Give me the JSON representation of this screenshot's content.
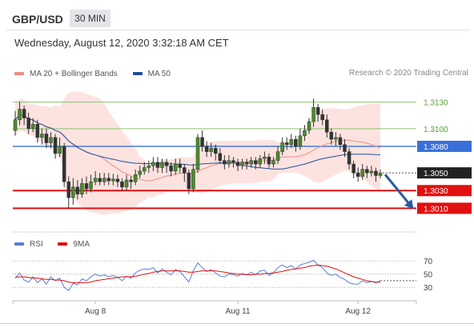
{
  "header": {
    "pair": "GBP/USD",
    "timeframe": "30 MIN",
    "timestamp": "Wednesday, August 12, 2020 3:32:18 AM CET"
  },
  "legend": {
    "items": [
      {
        "label": "MA 20 + Bollinger Bands",
        "color": "#f08a80"
      },
      {
        "label": "MA 50",
        "color": "#1f4e9c"
      }
    ],
    "credit": "Research © 2020 Trading Central"
  },
  "rsi_legend": {
    "items": [
      {
        "label": "RSI",
        "color": "#5b7fd6"
      },
      {
        "label": "9MA",
        "color": "#e01010"
      }
    ]
  },
  "chart_data": [
    {
      "type": "candlestick",
      "title": "GBP/USD 30 MIN",
      "ylim": [
        1.2985,
        1.3155
      ],
      "x_ticks": [
        {
          "label": "Aug 8",
          "index": 18
        },
        {
          "label": "Aug 11",
          "index": 50
        },
        {
          "label": "Aug 12",
          "index": 77
        }
      ],
      "current_price": {
        "value": 1.305,
        "label": "1.3050",
        "color": "#222222"
      },
      "levels": [
        {
          "value": 1.313,
          "label": "1.3130",
          "kind": "resistance",
          "color": "#8dc26f"
        },
        {
          "value": 1.31,
          "label": "1.3100",
          "kind": "resistance",
          "color": "#8dc26f"
        },
        {
          "value": 1.308,
          "label": "1.3080",
          "kind": "pivot",
          "color": "#3a6fd8"
        },
        {
          "value": 1.303,
          "label": "1.3030",
          "kind": "support",
          "color": "#e01010"
        },
        {
          "value": 1.301,
          "label": "1.3010",
          "kind": "support",
          "color": "#e01010"
        }
      ],
      "projection": {
        "from": 1.305,
        "to": 1.301
      },
      "candles": [
        [
          1.3098,
          1.311,
          1.312,
          1.3092
        ],
        [
          1.311,
          1.3122,
          1.313,
          1.3104
        ],
        [
          1.3122,
          1.3112,
          1.3126,
          1.3104
        ],
        [
          1.3112,
          1.31,
          1.3118,
          1.3094
        ],
        [
          1.31,
          1.3105,
          1.3112,
          1.3096
        ],
        [
          1.3105,
          1.309,
          1.311,
          1.3084
        ],
        [
          1.309,
          1.3094,
          1.31,
          1.3082
        ],
        [
          1.3094,
          1.3084,
          1.31,
          1.3078
        ],
        [
          1.3084,
          1.309,
          1.3096,
          1.3078
        ],
        [
          1.309,
          1.3072,
          1.3094,
          1.3066
        ],
        [
          1.3072,
          1.308,
          1.309,
          1.3068
        ],
        [
          1.308,
          1.304,
          1.3084,
          1.3034
        ],
        [
          1.304,
          1.3022,
          1.3046,
          1.301
        ],
        [
          1.3022,
          1.3034,
          1.3044,
          1.3014
        ],
        [
          1.3034,
          1.3026,
          1.3042,
          1.302
        ],
        [
          1.3026,
          1.3038,
          1.3044,
          1.3022
        ],
        [
          1.3038,
          1.3032,
          1.3046,
          1.3026
        ],
        [
          1.3032,
          1.304,
          1.3048,
          1.3028
        ],
        [
          1.304,
          1.3044,
          1.3052,
          1.3036
        ],
        [
          1.3044,
          1.304,
          1.305,
          1.3036
        ],
        [
          1.304,
          1.3044,
          1.305,
          1.3036
        ],
        [
          1.3044,
          1.3041,
          1.305,
          1.3036
        ],
        [
          1.3041,
          1.3043,
          1.3049,
          1.3036
        ],
        [
          1.3043,
          1.304,
          1.3048,
          1.3034
        ],
        [
          1.304,
          1.3034,
          1.3044,
          1.303
        ],
        [
          1.3034,
          1.3042,
          1.3048,
          1.303
        ],
        [
          1.3042,
          1.304,
          1.3046,
          1.3032
        ],
        [
          1.304,
          1.3048,
          1.3054,
          1.3036
        ],
        [
          1.3048,
          1.3052,
          1.3058,
          1.3044
        ],
        [
          1.3052,
          1.3056,
          1.3062,
          1.3048
        ],
        [
          1.3056,
          1.3058,
          1.3064,
          1.305
        ],
        [
          1.3058,
          1.3062,
          1.3068,
          1.3052
        ],
        [
          1.3062,
          1.3056,
          1.3068,
          1.305
        ],
        [
          1.3056,
          1.3062,
          1.3066,
          1.305
        ],
        [
          1.3062,
          1.3058,
          1.3066,
          1.305
        ],
        [
          1.3058,
          1.3052,
          1.3062,
          1.3046
        ],
        [
          1.3052,
          1.306,
          1.3066,
          1.3048
        ],
        [
          1.306,
          1.3056,
          1.3066,
          1.305
        ],
        [
          1.3056,
          1.305,
          1.306,
          1.304
        ],
        [
          1.305,
          1.3032,
          1.3054,
          1.3026
        ],
        [
          1.3032,
          1.3054,
          1.306,
          1.3028
        ],
        [
          1.3054,
          1.309,
          1.3094,
          1.305
        ],
        [
          1.309,
          1.308,
          1.3098,
          1.3074
        ],
        [
          1.308,
          1.3074,
          1.3086,
          1.3068
        ],
        [
          1.3074,
          1.3078,
          1.3084,
          1.3068
        ],
        [
          1.3078,
          1.3072,
          1.3082,
          1.3064
        ],
        [
          1.3072,
          1.3064,
          1.3078,
          1.306
        ],
        [
          1.3064,
          1.306,
          1.307,
          1.3054
        ],
        [
          1.306,
          1.3064,
          1.307,
          1.3056
        ],
        [
          1.3064,
          1.3062,
          1.3068,
          1.3056
        ],
        [
          1.3062,
          1.3058,
          1.3066,
          1.3052
        ],
        [
          1.3058,
          1.3062,
          1.3066,
          1.3054
        ],
        [
          1.3062,
          1.306,
          1.3066,
          1.3054
        ],
        [
          1.306,
          1.3064,
          1.3068,
          1.3056
        ],
        [
          1.3064,
          1.306,
          1.3068,
          1.3054
        ],
        [
          1.306,
          1.3066,
          1.307,
          1.3056
        ],
        [
          1.3066,
          1.3068,
          1.3074,
          1.306
        ],
        [
          1.3068,
          1.306,
          1.3072,
          1.3056
        ],
        [
          1.306,
          1.3064,
          1.3068,
          1.3056
        ],
        [
          1.3064,
          1.3074,
          1.308,
          1.306
        ],
        [
          1.3074,
          1.3084,
          1.309,
          1.307
        ],
        [
          1.3084,
          1.3082,
          1.309,
          1.3076
        ],
        [
          1.3082,
          1.3088,
          1.3094,
          1.3078
        ],
        [
          1.3088,
          1.308,
          1.3092,
          1.3074
        ],
        [
          1.308,
          1.3092,
          1.31,
          1.3076
        ],
        [
          1.3092,
          1.3098,
          1.3104,
          1.3086
        ],
        [
          1.3098,
          1.3108,
          1.3112,
          1.3094
        ],
        [
          1.3108,
          1.3124,
          1.3134,
          1.3102
        ],
        [
          1.3124,
          1.3116,
          1.3128,
          1.3108
        ],
        [
          1.3116,
          1.311,
          1.3122,
          1.3104
        ],
        [
          1.311,
          1.3096,
          1.3116,
          1.309
        ],
        [
          1.3096,
          1.3088,
          1.31,
          1.3082
        ],
        [
          1.3088,
          1.309,
          1.3096,
          1.308
        ],
        [
          1.309,
          1.3082,
          1.3094,
          1.3076
        ],
        [
          1.3082,
          1.3074,
          1.3088,
          1.3068
        ],
        [
          1.3074,
          1.306,
          1.3078,
          1.3054
        ],
        [
          1.306,
          1.305,
          1.3064,
          1.3044
        ],
        [
          1.305,
          1.3046,
          1.3056,
          1.304
        ],
        [
          1.3046,
          1.3054,
          1.306,
          1.3042
        ],
        [
          1.3054,
          1.305,
          1.3058,
          1.3044
        ],
        [
          1.305,
          1.3052,
          1.3058,
          1.3046
        ],
        [
          1.3052,
          1.3047,
          1.3056,
          1.304
        ],
        [
          1.3047,
          1.305,
          1.3054,
          1.3044
        ]
      ]
    },
    {
      "type": "line",
      "title": "RSI",
      "ylim": [
        20,
        80
      ],
      "y_ticks": [
        70,
        50,
        30
      ],
      "series": [
        {
          "name": "RSI",
          "color": "#5b7fd6",
          "values": [
            44,
            52,
            41,
            38,
            46,
            37,
            43,
            35,
            46,
            40,
            44,
            30,
            25,
            36,
            34,
            43,
            40,
            46,
            50,
            47,
            49,
            46,
            48,
            45,
            40,
            47,
            44,
            52,
            56,
            58,
            57,
            60,
            52,
            58,
            53,
            49,
            57,
            54,
            46,
            38,
            55,
            67,
            60,
            54,
            57,
            52,
            47,
            46,
            50,
            49,
            47,
            51,
            49,
            53,
            49,
            55,
            56,
            48,
            52,
            60,
            64,
            60,
            63,
            58,
            64,
            66,
            68,
            71,
            64,
            60,
            52,
            48,
            50,
            45,
            42,
            37,
            35,
            35,
            40,
            37,
            39,
            37,
            40
          ]
        },
        {
          "name": "9MA",
          "color": "#e01010",
          "values": [
            45,
            46,
            46,
            45,
            44,
            44,
            43,
            42,
            42,
            41,
            41,
            40,
            38,
            37,
            37,
            37,
            37,
            38,
            40,
            41,
            42,
            43,
            44,
            45,
            46,
            46,
            46,
            47,
            48,
            50,
            51,
            53,
            54,
            55,
            55,
            55,
            55,
            55,
            54,
            53,
            53,
            54,
            55,
            55,
            55,
            55,
            54,
            53,
            52,
            51,
            50,
            50,
            49,
            49,
            50,
            50,
            51,
            51,
            52,
            53,
            54,
            56,
            57,
            58,
            59,
            60,
            62,
            63,
            64,
            63,
            62,
            60,
            58,
            55,
            52,
            49,
            46,
            44,
            42,
            40,
            39,
            38,
            38
          ]
        }
      ]
    }
  ]
}
